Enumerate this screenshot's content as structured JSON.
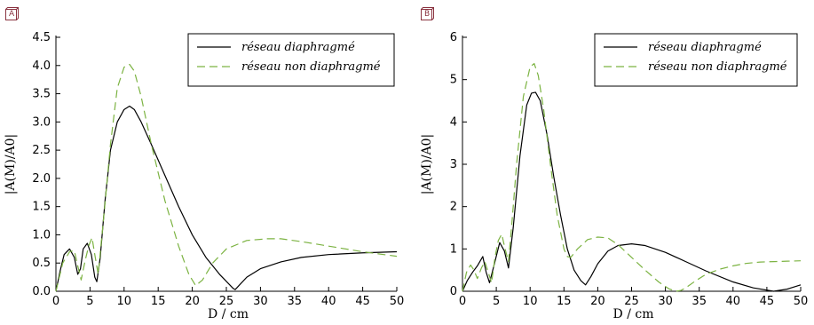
{
  "chart_data": [
    {
      "panel_tag": "A",
      "type": "line",
      "xlabel": "D / cm",
      "ylabel": "|A(M)/A0|",
      "xlim": [
        0,
        50
      ],
      "ylim": [
        0,
        4.5
      ],
      "xticks": [
        "0",
        "5",
        "10",
        "15",
        "20",
        "25",
        "30",
        "35",
        "40",
        "45",
        "50"
      ],
      "yticks": [
        "0.0",
        "0.5",
        "1.0",
        "1.5",
        "2.0",
        "2.5",
        "3.0",
        "3.5",
        "4.0",
        "4.5"
      ],
      "legend": "top-right",
      "series": [
        {
          "name": "réseau diaphragmé",
          "color": "#000000",
          "dash": "solid",
          "x": [
            0,
            0.6,
            1.2,
            2.0,
            2.7,
            3.2,
            3.6,
            4.0,
            4.6,
            5.2,
            5.7,
            6.0,
            6.5,
            7.2,
            8.0,
            9.0,
            10.0,
            10.8,
            11.5,
            12.5,
            14.0,
            16.0,
            18.0,
            20.0,
            22.0,
            24.0,
            26.0,
            26.3,
            28.0,
            30.0,
            33.0,
            36.0,
            40.0,
            45.0,
            50.0
          ],
          "y": [
            0,
            0.35,
            0.65,
            0.75,
            0.6,
            0.3,
            0.4,
            0.75,
            0.85,
            0.65,
            0.25,
            0.17,
            0.6,
            1.6,
            2.5,
            3.0,
            3.22,
            3.28,
            3.22,
            3.0,
            2.6,
            2.05,
            1.5,
            1.0,
            0.6,
            0.3,
            0.05,
            0.03,
            0.25,
            0.4,
            0.52,
            0.6,
            0.65,
            0.68,
            0.7
          ]
        },
        {
          "name": "réseau non diaphragmé",
          "color": "#7cb342",
          "dash": "dashed",
          "x": [
            0,
            1.0,
            2.0,
            2.7,
            3.2,
            3.7,
            4.3,
            4.8,
            5.3,
            5.7,
            6.2,
            7.0,
            8.0,
            9.0,
            10.0,
            10.8,
            11.5,
            12.5,
            14.0,
            16.0,
            18.0,
            19.5,
            20.5,
            21.5,
            23.0,
            25.0,
            28.0,
            31.0,
            33.0,
            36.0,
            40.0,
            45.0,
            50.0
          ],
          "y": [
            0,
            0.5,
            0.7,
            0.72,
            0.45,
            0.2,
            0.55,
            0.8,
            0.95,
            0.65,
            0.3,
            1.3,
            2.6,
            3.6,
            3.97,
            4.02,
            3.9,
            3.45,
            2.6,
            1.6,
            0.8,
            0.3,
            0.1,
            0.2,
            0.5,
            0.75,
            0.9,
            0.93,
            0.93,
            0.88,
            0.8,
            0.7,
            0.62
          ]
        }
      ]
    },
    {
      "panel_tag": "B",
      "type": "line",
      "xlabel": "D / cm",
      "ylabel": "|A(M)/A0|",
      "xlim": [
        0,
        50
      ],
      "ylim": [
        0,
        6
      ],
      "xticks": [
        "0",
        "5",
        "10",
        "15",
        "20",
        "25",
        "30",
        "35",
        "40",
        "45",
        "50"
      ],
      "yticks": [
        "0",
        "1",
        "2",
        "3",
        "4",
        "5",
        "6"
      ],
      "legend": "top-right",
      "series": [
        {
          "name": "réseau diaphragmé",
          "color": "#000000",
          "dash": "solid",
          "x": [
            0,
            0.7,
            1.5,
            2.2,
            3.0,
            3.5,
            4.0,
            4.8,
            5.5,
            6.2,
            6.8,
            7.5,
            8.5,
            9.5,
            10.2,
            10.8,
            11.5,
            12.5,
            13.5,
            14.5,
            15.5,
            16.5,
            17.5,
            18.2,
            19.0,
            20.0,
            21.5,
            23.0,
            25.0,
            27.0,
            30.0,
            33.0,
            36.0,
            40.0,
            43.0,
            46.0,
            48.0,
            50.0
          ],
          "y": [
            0,
            0.25,
            0.45,
            0.6,
            0.82,
            0.45,
            0.2,
            0.7,
            1.15,
            0.95,
            0.55,
            1.5,
            3.2,
            4.4,
            4.68,
            4.7,
            4.5,
            3.7,
            2.7,
            1.8,
            1.0,
            0.5,
            0.25,
            0.15,
            0.35,
            0.65,
            0.95,
            1.08,
            1.12,
            1.08,
            0.92,
            0.7,
            0.48,
            0.22,
            0.08,
            0.0,
            0.05,
            0.15
          ]
        },
        {
          "name": "réseau non diaphragmé",
          "color": "#7cb342",
          "dash": "dashed",
          "x": [
            0,
            0.6,
            1.2,
            1.7,
            2.2,
            2.8,
            3.3,
            3.8,
            4.3,
            4.8,
            5.3,
            5.8,
            6.3,
            6.8,
            7.3,
            8.0,
            9.0,
            10.0,
            10.6,
            11.2,
            12.0,
            13.0,
            14.0,
            15.0,
            15.5,
            16.0,
            17.0,
            18.5,
            20.0,
            21.5,
            23.0,
            25.0,
            27.0,
            29.0,
            30.5,
            31.5,
            32.3,
            33.0,
            34.5,
            36.0,
            38.0,
            40.0,
            42.0,
            44.0,
            46.0,
            48.0,
            50.0
          ],
          "y": [
            0,
            0.45,
            0.62,
            0.5,
            0.3,
            0.55,
            0.7,
            0.45,
            0.2,
            0.8,
            1.2,
            1.35,
            1.0,
            0.7,
            1.6,
            3.0,
            4.6,
            5.3,
            5.38,
            5.1,
            4.3,
            3.0,
            1.8,
            1.0,
            0.82,
            0.8,
            1.0,
            1.22,
            1.28,
            1.26,
            1.1,
            0.8,
            0.5,
            0.22,
            0.06,
            0.0,
            0.02,
            0.08,
            0.25,
            0.4,
            0.52,
            0.6,
            0.66,
            0.69,
            0.7,
            0.71,
            0.72
          ]
        }
      ]
    }
  ]
}
